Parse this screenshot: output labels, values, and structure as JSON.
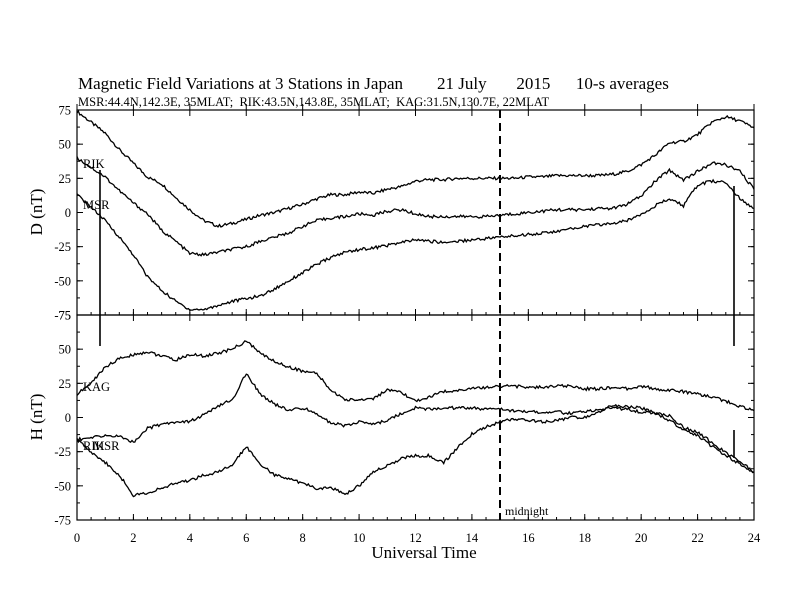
{
  "chart_data": {
    "type": "line",
    "title": "Magnetic Field Variations at 3 Stations in Japan        21 July       2015      10-s averages",
    "subtitle": "MSR:44.4N,142.3E, 35MLAT;  RIK:43.5N,143.8E, 35MLAT;  KAG:31.5N,130.7E, 22MLAT",
    "xlabel": "Universal Time",
    "xlim": [
      0,
      24
    ],
    "xticks": [
      "0",
      "2",
      "4",
      "6",
      "8",
      "10",
      "12",
      "14",
      "16",
      "18",
      "20",
      "22",
      "24"
    ],
    "midnight_label": "midnight",
    "midnight_x": 15,
    "panels": [
      {
        "ylabel": "D (nT)",
        "ylim": [
          -75,
          75
        ],
        "yticks": [
          "75",
          "50",
          "25",
          "0",
          "-25",
          "-50",
          "-75"
        ],
        "trace_labels": [
          "RIK",
          "MSR"
        ],
        "series": [
          {
            "name": "KAG",
            "x": [
              0,
              0.5,
              1,
              1.5,
              2,
              2.5,
              3,
              3.5,
              4,
              4.5,
              5,
              5.5,
              6,
              6.5,
              7,
              7.5,
              8,
              8.5,
              9,
              9.5,
              10,
              10.5,
              11,
              11.5,
              12,
              12.5,
              13,
              13.5,
              14,
              14.5,
              15,
              15.5,
              16,
              16.5,
              17,
              17.5,
              18,
              18.5,
              19,
              19.5,
              20,
              20.5,
              21,
              21.5,
              22,
              22.5,
              23,
              23.5,
              24
            ],
            "y": [
              74,
              66,
              58,
              46,
              36,
              26,
              21,
              11,
              2,
              -6,
              -10,
              -8,
              -5,
              -2,
              0,
              3,
              6,
              10,
              13,
              13,
              15,
              14,
              17,
              19,
              23,
              24,
              24,
              25,
              25,
              25,
              25,
              25,
              26,
              26,
              27,
              27,
              27,
              27,
              28,
              30,
              35,
              42,
              51,
              52,
              57,
              66,
              70,
              67,
              62
            ]
          },
          {
            "name": "RIK",
            "x": [
              0,
              0.5,
              1,
              1.5,
              2,
              2.5,
              3,
              3.5,
              4,
              4.5,
              5,
              5.5,
              6,
              6.5,
              7,
              7.5,
              8,
              8.5,
              9,
              9.5,
              10,
              10.5,
              11,
              11.5,
              12,
              12.5,
              13,
              13.5,
              14,
              14.5,
              15,
              15.5,
              16,
              16.5,
              17,
              17.5,
              18,
              18.5,
              19,
              19.5,
              20,
              20.5,
              21,
              21.5,
              22,
              22.5,
              23,
              23.5,
              24
            ],
            "y": [
              40,
              33,
              26,
              16,
              7,
              -1,
              -13,
              -21,
              -30,
              -31,
              -29,
              -27,
              -25,
              -21,
              -18,
              -15,
              -10,
              -6,
              -4,
              -3,
              -1,
              -2,
              1,
              2,
              -1,
              -3,
              -3,
              -3,
              -3,
              -3,
              -2,
              -1,
              0,
              1,
              2,
              2,
              2,
              3,
              3,
              6,
              12,
              23,
              31,
              24,
              30,
              36,
              35,
              30,
              17
            ]
          },
          {
            "name": "MSR",
            "x": [
              0,
              0.5,
              1,
              1.5,
              2,
              2.5,
              3,
              3.5,
              4,
              4.5,
              5,
              5.5,
              6,
              6.5,
              7,
              7.5,
              8,
              8.5,
              9,
              9.5,
              10,
              10.5,
              11,
              11.5,
              12,
              12.5,
              13,
              13.5,
              14,
              14.5,
              15,
              15.5,
              16,
              16.5,
              17,
              17.5,
              18,
              18.5,
              19,
              19.5,
              20,
              20.5,
              21,
              21.5,
              22,
              22.5,
              23,
              23.5,
              24
            ],
            "y": [
              13,
              4,
              -6,
              -18,
              -31,
              -47,
              -57,
              -65,
              -71,
              -71,
              -68,
              -65,
              -63,
              -61,
              -56,
              -50,
              -44,
              -38,
              -33,
              -29,
              -27,
              -26,
              -24,
              -22,
              -20,
              -21,
              -22,
              -21,
              -20,
              -19,
              -18,
              -17,
              -16,
              -15,
              -14,
              -12,
              -10,
              -9,
              -8,
              -6,
              -1,
              5,
              10,
              5,
              20,
              23,
              22,
              10,
              3
            ]
          }
        ]
      },
      {
        "ylabel": "H (nT)",
        "ylim": [
          -75,
          75
        ],
        "yticks": [
          "75",
          "50",
          "25",
          "0",
          "-25",
          "-50",
          "-75"
        ],
        "trace_labels": [
          "KAG",
          "RIK",
          "MSR"
        ],
        "series": [
          {
            "name": "KAG",
            "x": [
              0,
              0.5,
              1,
              1.5,
              2,
              2.5,
              3,
              3.5,
              4,
              4.5,
              5,
              5.5,
              6,
              6.5,
              7,
              7.5,
              8,
              8.5,
              9,
              9.5,
              10,
              10.5,
              11,
              11.5,
              12,
              12.5,
              13,
              13.5,
              14,
              14.5,
              15,
              15.5,
              16,
              16.5,
              17,
              17.5,
              18,
              18.5,
              19,
              19.5,
              20,
              20.5,
              21,
              21.5,
              22,
              22.5,
              23,
              23.5,
              24
            ],
            "y": [
              17,
              25,
              37,
              43,
              46,
              48,
              45,
              42,
              46,
              45,
              47,
              50,
              56,
              47,
              41,
              37,
              34,
              32,
              20,
              13,
              13,
              14,
              20,
              18,
              12,
              15,
              19,
              20,
              21,
              22,
              23,
              23,
              22,
              22,
              23,
              23,
              21,
              21,
              22,
              21,
              23,
              21,
              20,
              19,
              17,
              15,
              12,
              8,
              5
            ]
          },
          {
            "name": "RIK",
            "x": [
              0,
              0.5,
              1,
              1.5,
              2,
              2.5,
              3,
              3.5,
              4,
              4.5,
              5,
              5.5,
              6,
              6.5,
              7,
              7.5,
              8,
              8.5,
              9,
              9.5,
              10,
              10.5,
              11,
              11.5,
              12,
              12.5,
              13,
              13.5,
              14,
              14.5,
              15,
              15.5,
              16,
              16.5,
              17,
              17.5,
              18,
              18.5,
              19,
              19.5,
              20,
              20.5,
              21,
              21.5,
              22,
              22.5,
              23,
              23.5,
              24
            ],
            "y": [
              -16,
              -15,
              -13,
              -14,
              -18,
              -8,
              -5,
              -3,
              -3,
              2,
              8,
              13,
              32,
              17,
              10,
              5,
              7,
              3,
              -4,
              -6,
              -3,
              -5,
              -2,
              3,
              7,
              6,
              7,
              7,
              7,
              6,
              6,
              5,
              4,
              4,
              4,
              3,
              4,
              6,
              7,
              6,
              4,
              3,
              1,
              -7,
              -11,
              -18,
              -26,
              -32,
              -40
            ]
          },
          {
            "name": "MSR",
            "x": [
              0,
              0.5,
              1,
              1.5,
              2,
              2.5,
              3,
              3.5,
              4,
              4.5,
              5,
              5.5,
              6,
              6.5,
              7,
              7.5,
              8,
              8.5,
              9,
              9.5,
              10,
              10.5,
              11,
              11.5,
              12,
              12.5,
              13,
              13.5,
              14,
              14.5,
              15,
              15.5,
              16,
              16.5,
              17,
              17.5,
              18,
              18.5,
              19,
              19.5,
              20,
              20.5,
              21,
              21.5,
              22,
              22.5,
              23,
              23.5,
              24
            ],
            "y": [
              -16,
              -25,
              -33,
              -42,
              -57,
              -55,
              -52,
              -48,
              -46,
              -42,
              -40,
              -35,
              -21,
              -34,
              -42,
              -45,
              -48,
              -52,
              -51,
              -56,
              -50,
              -40,
              -35,
              -30,
              -28,
              -28,
              -33,
              -22,
              -12,
              -7,
              -3,
              -1,
              -2,
              -3,
              -2,
              0,
              0,
              4,
              9,
              8,
              7,
              3,
              -2,
              -9,
              -13,
              -21,
              -28,
              -34,
              -40
            ]
          }
        ]
      }
    ]
  }
}
